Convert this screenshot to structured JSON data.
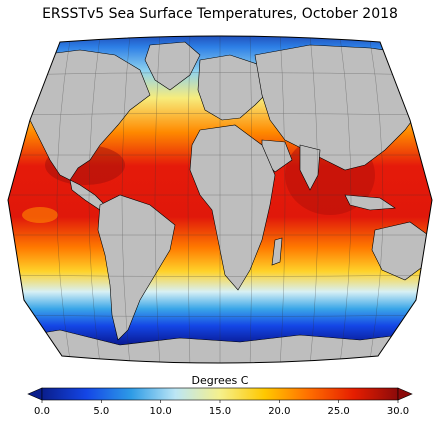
{
  "title": "ERSSTv5 Sea Surface Temperatures, October 2018",
  "colorbar": {
    "label": "Degrees C",
    "ticks": [
      "0.0",
      "5.0",
      "10.0",
      "15.0",
      "20.0",
      "25.0",
      "30.0"
    ],
    "min": 0,
    "max": 30,
    "extend": "both",
    "colors": [
      "#0a1e8c",
      "#1446e6",
      "#2d9be6",
      "#bce6f5",
      "#f5f08c",
      "#ffc800",
      "#ff6e00",
      "#e61e00",
      "#8c0a0a"
    ]
  },
  "map": {
    "projection": "Robinson",
    "land_color": "#bebebe",
    "variable": "sea surface temperature"
  }
}
